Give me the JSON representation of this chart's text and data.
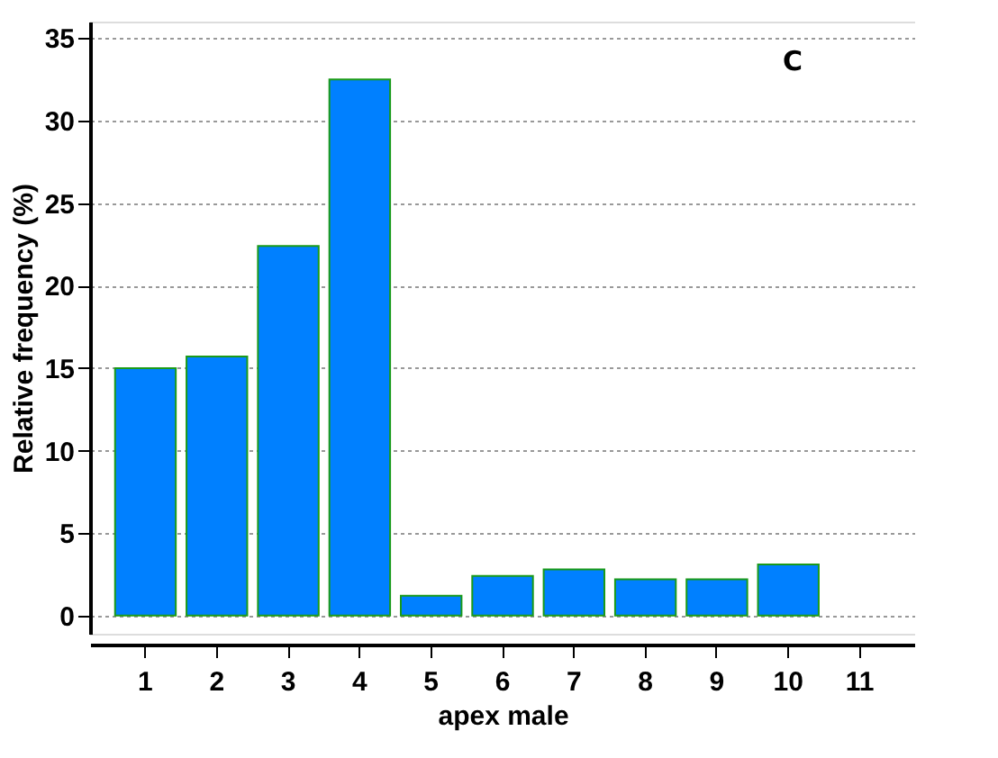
{
  "chart_data": {
    "type": "bar",
    "xlabel": "apex male",
    "ylabel": "Relative frequency (%)",
    "annotations": [
      "C"
    ],
    "categories": [
      "1",
      "2",
      "3",
      "4",
      "5",
      "6",
      "7",
      "8",
      "9",
      "10",
      "11"
    ],
    "values": [
      15.0,
      15.7,
      22.4,
      32.5,
      1.2,
      2.4,
      2.8,
      2.2,
      2.2,
      3.1,
      null
    ],
    "color": "#0080ff",
    "ylim": [
      -1.1,
      36
    ],
    "yticks": [
      0,
      5,
      10,
      15,
      20,
      25,
      30,
      35
    ],
    "grid": "y"
  }
}
